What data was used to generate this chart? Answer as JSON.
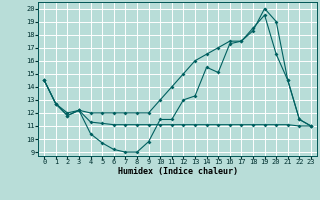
{
  "title": "",
  "xlabel": "Humidex (Indice chaleur)",
  "background_color": "#b8ddd8",
  "grid_color": "#ffffff",
  "line_color": "#006060",
  "xlim": [
    -0.5,
    23.5
  ],
  "ylim": [
    8.7,
    20.5
  ],
  "yticks": [
    9,
    10,
    11,
    12,
    13,
    14,
    15,
    16,
    17,
    18,
    19,
    20
  ],
  "xticks": [
    0,
    1,
    2,
    3,
    4,
    5,
    6,
    7,
    8,
    9,
    10,
    11,
    12,
    13,
    14,
    15,
    16,
    17,
    18,
    19,
    20,
    21,
    22,
    23
  ],
  "line1_x": [
    0,
    1,
    2,
    3,
    4,
    5,
    6,
    7,
    8,
    9,
    10,
    11,
    12,
    13,
    14,
    15,
    16,
    17,
    18,
    19,
    20,
    21,
    22,
    23
  ],
  "line1_y": [
    14.5,
    12.7,
    11.8,
    12.2,
    11.3,
    11.2,
    11.1,
    11.1,
    11.1,
    11.1,
    11.1,
    11.1,
    11.1,
    11.1,
    11.1,
    11.1,
    11.1,
    11.1,
    11.1,
    11.1,
    11.1,
    11.1,
    11.0,
    11.0
  ],
  "line2_x": [
    0,
    1,
    2,
    3,
    4,
    5,
    6,
    7,
    8,
    9,
    10,
    11,
    12,
    13,
    14,
    15,
    16,
    17,
    18,
    19,
    20,
    21,
    22,
    23
  ],
  "line2_y": [
    14.5,
    12.7,
    11.8,
    12.2,
    10.4,
    9.7,
    9.2,
    9.0,
    9.0,
    9.8,
    11.5,
    11.5,
    13.0,
    13.3,
    15.5,
    15.1,
    17.3,
    17.5,
    18.3,
    20.0,
    19.0,
    14.5,
    11.5,
    11.0
  ],
  "line3_x": [
    0,
    1,
    2,
    3,
    4,
    5,
    6,
    7,
    8,
    9,
    10,
    11,
    12,
    13,
    14,
    15,
    16,
    17,
    18,
    19,
    20,
    21,
    22,
    23
  ],
  "line3_y": [
    14.5,
    12.7,
    12.0,
    12.2,
    12.0,
    12.0,
    12.0,
    12.0,
    12.0,
    12.0,
    13.0,
    14.0,
    15.0,
    16.0,
    16.5,
    17.0,
    17.5,
    17.5,
    18.5,
    19.5,
    16.5,
    14.5,
    11.5,
    11.0
  ]
}
